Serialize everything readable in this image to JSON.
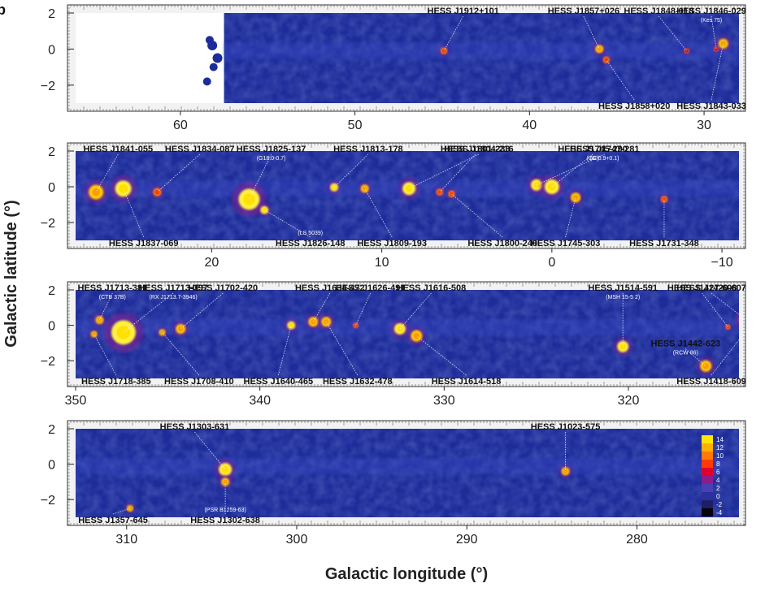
{
  "panel_letter": "b",
  "chart_data": {
    "type": "heatmap",
    "xlabel": "Galactic longitude (°)",
    "ylabel": "Galactic latitude (°)",
    "colorbar": {
      "ticks": [
        "14",
        "12",
        "10",
        "8",
        "6",
        "4",
        "2",
        "0",
        "-2",
        "-4"
      ],
      "colors": [
        "#ffe600",
        "#ffb000",
        "#ff7a00",
        "#ff3a00",
        "#e0002a",
        "#8e1d8a",
        "#4a3fb4",
        "#2b2fa0",
        "#1c1f66",
        "#05050a"
      ]
    },
    "colors": {
      "background": "#1e2c9a",
      "frame": "#e9e9e9",
      "hot": "#ffe600",
      "warm": "#ff5a00"
    },
    "panels": [
      {
        "id": "panel-1",
        "xlim": [
          66,
          28
        ],
        "ylim": [
          -3,
          2
        ],
        "xticks": [
          {
            "v": 60,
            "t": "60"
          },
          {
            "v": 50,
            "t": "50"
          },
          {
            "v": 40,
            "t": "40"
          },
          {
            "v": 30,
            "t": "30"
          }
        ],
        "coverage_start": 57.5,
        "sources": [
          {
            "name": "HESS J1912+101",
            "l": 44.9,
            "b": -0.1,
            "r": 4,
            "i": 2,
            "label_at": 43.8,
            "label_side": "top"
          },
          {
            "name": "HESS J1857+026",
            "l": 36.0,
            "b": 0.0,
            "r": 5,
            "i": 3,
            "label_at": 36.9,
            "label_side": "top"
          },
          {
            "name": "HESS J1858+020",
            "l": 35.6,
            "b": -0.6,
            "r": 4,
            "i": 2,
            "label_at": 34.0,
            "label_side": "bottom"
          },
          {
            "name": "HESS J1848-018",
            "l": 31.0,
            "b": -0.1,
            "r": 3,
            "i": 1,
            "label_at": 32.6,
            "label_side": "top"
          },
          {
            "name": "HESS J1846-029",
            "l": 29.3,
            "b": 0.0,
            "r": 3,
            "i": 1,
            "label_at": 27.9,
            "label_side": "top",
            "alias": "(Kes 75)"
          },
          {
            "name": "HESS J1843-033",
            "l": 28.9,
            "b": 0.3,
            "r": 6,
            "i": 3,
            "label_at": 28.2,
            "label_side": "bottom"
          }
        ]
      },
      {
        "id": "panel-2",
        "xlim": [
          28,
          -11
        ],
        "ylim": [
          -3,
          2
        ],
        "xticks": [
          {
            "v": 20,
            "t": "20"
          },
          {
            "v": 10,
            "t": "10"
          },
          {
            "v": 0,
            "t": "0"
          },
          {
            "v": -10,
            "t": "−10"
          }
        ],
        "sources": [
          {
            "name": "HESS J1841-055",
            "l": 26.8,
            "b": -0.3,
            "r": 9,
            "i": 3,
            "label_at": 25.5,
            "label_side": "top"
          },
          {
            "name": "HESS J1837-069",
            "l": 25.2,
            "b": -0.1,
            "r": 10,
            "i": 4,
            "label_at": 24.0,
            "label_side": "bottom"
          },
          {
            "name": "HESS J1834-087",
            "l": 23.2,
            "b": -0.3,
            "r": 5,
            "i": 2,
            "label_at": 20.7,
            "label_side": "top"
          },
          {
            "name": "HESS J1825-137",
            "l": 17.8,
            "b": -0.7,
            "r": 13,
            "i": 4,
            "label_at": 16.5,
            "label_side": "top",
            "alias": "(G18.0-0.7)"
          },
          {
            "name": "HESS J1826-148",
            "l": 16.9,
            "b": -1.3,
            "r": 5,
            "i": 4,
            "label_at": 14.2,
            "label_side": "bottom",
            "alias": "(LS 5039)"
          },
          {
            "name": "HESS J1813-178",
            "l": 12.8,
            "b": -0.03,
            "r": 5,
            "i": 4,
            "label_at": 10.8,
            "label_side": "top"
          },
          {
            "name": "HESS J1809-193",
            "l": 11.0,
            "b": -0.1,
            "r": 5,
            "i": 3,
            "label_at": 9.4,
            "label_side": "bottom"
          },
          {
            "name": "HESS J1804-216",
            "l": 8.4,
            "b": -0.1,
            "r": 8,
            "i": 4,
            "label_at": 4.3,
            "label_side": "top"
          },
          {
            "name": "HESS J1801-233",
            "l": 6.6,
            "b": -0.3,
            "r": 4,
            "i": 2,
            "label_at": 4.5,
            "label_side": "top"
          },
          {
            "name": "HESS J1800-240",
            "l": 5.9,
            "b": -0.4,
            "r": 4,
            "i": 2,
            "label_at": 2.9,
            "label_side": "bottom"
          },
          {
            "name": "HESS J1747-281",
            "l": 0.9,
            "b": 0.1,
            "r": 7,
            "i": 4,
            "label_at": -3.1,
            "label_side": "top",
            "alias": "(G 0.9+0.1)"
          },
          {
            "name": "HESS J1745-290",
            "l": 0.0,
            "b": 0.0,
            "r": 9,
            "i": 4,
            "label_at": -2.4,
            "label_side": "top",
            "alias": "(GC)"
          },
          {
            "name": "HESS J1745-303",
            "l": -1.4,
            "b": -0.6,
            "r": 6,
            "i": 3,
            "label_at": -0.8,
            "label_side": "bottom"
          },
          {
            "name": "HESS J1731-348",
            "l": -6.6,
            "b": -0.7,
            "r": 4,
            "i": 2,
            "label_at": -6.6,
            "label_side": "bottom"
          }
        ]
      },
      {
        "id": "panel-3",
        "xlim": [
          350,
          314
        ],
        "ylim": [
          -3,
          2
        ],
        "xticks": [
          {
            "v": 350,
            "t": "350"
          },
          {
            "v": 340,
            "t": "340"
          },
          {
            "v": 330,
            "t": "330"
          },
          {
            "v": 320,
            "t": "320"
          }
        ],
        "sources": [
          {
            "name": "HESS J1713-381",
            "l": 348.7,
            "b": 0.3,
            "r": 5,
            "i": 3,
            "label_at": 348.0,
            "label_side": "top",
            "alias": "(CTB 37B)"
          },
          {
            "name": "HESS J1718-385",
            "l": 349.0,
            "b": -0.5,
            "r": 4,
            "i": 3,
            "label_at": 347.8,
            "label_side": "bottom"
          },
          {
            "name": "HESS J1713-397",
            "l": 347.4,
            "b": -0.4,
            "r": 15,
            "i": 4,
            "label_at": 344.7,
            "label_side": "top",
            "alias": "(RX J1713.7-3946)"
          },
          {
            "name": "HESS J1708-410",
            "l": 345.3,
            "b": -0.4,
            "r": 4,
            "i": 3,
            "label_at": 343.3,
            "label_side": "bottom"
          },
          {
            "name": "HESS J1702-420",
            "l": 344.3,
            "b": -0.2,
            "r": 6,
            "i": 3,
            "label_at": 342.0,
            "label_side": "top"
          },
          {
            "name": "HESS J1640-465",
            "l": 338.3,
            "b": 0.0,
            "r": 5,
            "i": 4,
            "label_at": 339.0,
            "label_side": "bottom"
          },
          {
            "name": "HESS J1634-472",
            "l": 337.1,
            "b": 0.2,
            "r": 6,
            "i": 3,
            "label_at": 336.2,
            "label_side": "top"
          },
          {
            "name": "HESS J1632-478",
            "l": 336.4,
            "b": 0.2,
            "r": 6,
            "i": 3,
            "label_at": 334.7,
            "label_side": "bottom"
          },
          {
            "name": "HESS J1626-491",
            "l": 334.8,
            "b": 0.0,
            "r": 3,
            "i": 2,
            "label_at": 334.0,
            "label_side": "top"
          },
          {
            "name": "HESS J1616-508",
            "l": 332.4,
            "b": -0.2,
            "r": 7,
            "i": 4,
            "label_at": 330.7,
            "label_side": "top"
          },
          {
            "name": "HESS J1614-518",
            "l": 331.5,
            "b": -0.6,
            "r": 7,
            "i": 3,
            "label_at": 328.8,
            "label_side": "bottom"
          },
          {
            "name": "HESS J1514-591",
            "l": 320.3,
            "b": -1.2,
            "r": 7,
            "i": 4,
            "label_at": 320.3,
            "label_side": "top",
            "alias": "(MSH 15-5 2)"
          },
          {
            "name": "HESS J1442-623",
            "l": 315.8,
            "b": -2.3,
            "r": 7,
            "i": 3,
            "label_at": 316.9,
            "label_side": "mid",
            "alias": "(RCW 86)"
          },
          {
            "name": "HESS J1427-608",
            "l": 314.6,
            "b": -0.1,
            "r": 3,
            "i": 2,
            "label_at": 316.0,
            "label_side": "top"
          },
          {
            "name": "HESS J1420-607",
            "l": 313.6,
            "b": 0.3,
            "r": 8,
            "i": 4,
            "label_at": 314.3,
            "label_side": "top"
          },
          {
            "name": "HESS J1418-609",
            "l": 313.3,
            "b": 0.1,
            "r": 4,
            "i": 2,
            "label_at": 314.4,
            "label_side": "bottom"
          }
        ]
      },
      {
        "id": "panel-4",
        "xlim": [
          313,
          274
        ],
        "ylim": [
          -3,
          2
        ],
        "xticks": [
          {
            "v": 310,
            "t": "310"
          },
          {
            "v": 300,
            "t": "300"
          },
          {
            "v": 290,
            "t": "290"
          },
          {
            "v": 280,
            "t": "280"
          }
        ],
        "sources": [
          {
            "name": "HESS J1303-631",
            "l": 304.2,
            "b": -0.3,
            "r": 8,
            "i": 4,
            "label_at": 306.0,
            "label_side": "top"
          },
          {
            "name": "HESS J1302-638",
            "l": 304.2,
            "b": -1.0,
            "r": 5,
            "i": 3,
            "label_at": 304.2,
            "label_side": "bottom",
            "alias": "(PSR B1259-63)"
          },
          {
            "name": "HESS J1357-645",
            "l": 309.8,
            "b": -2.5,
            "r": 4,
            "i": 3,
            "label_at": 310.8,
            "label_side": "bottom"
          },
          {
            "name": "HESS J1023-575",
            "l": 284.2,
            "b": -0.4,
            "r": 5,
            "i": 3,
            "label_at": 284.2,
            "label_side": "top"
          }
        ]
      }
    ]
  }
}
